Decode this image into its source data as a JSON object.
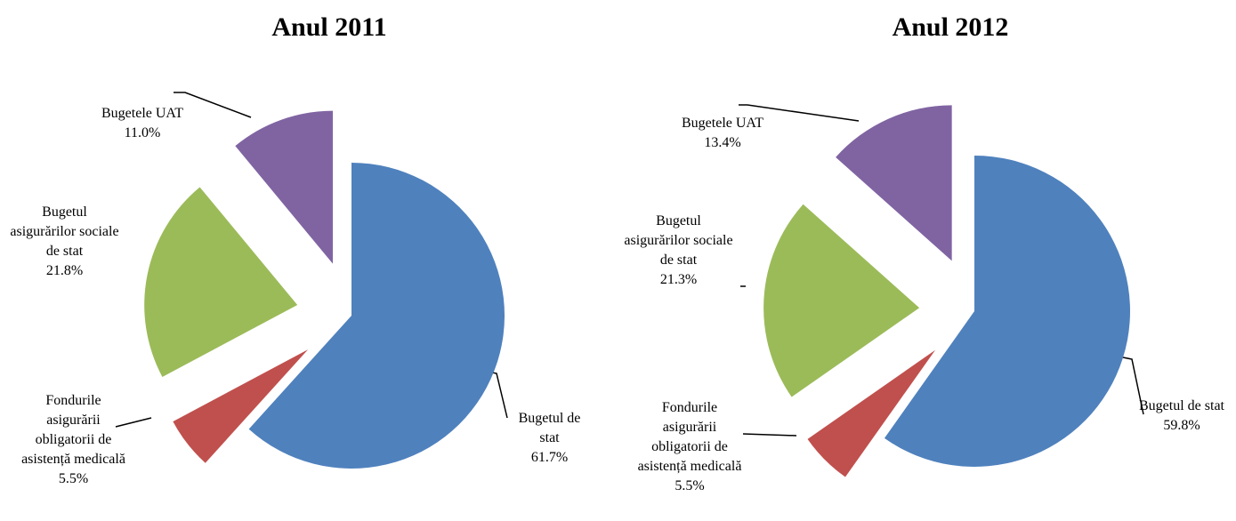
{
  "chart_data": [
    {
      "type": "pie",
      "title": "Anul 2011",
      "categories": [
        "Bugetul de stat",
        "Fondurile asigurării obligatorii de asistență medicală",
        "Bugetul asigurărilor sociale de stat",
        "Bugetele UAT"
      ],
      "values": [
        61.7,
        5.5,
        21.8,
        11.0
      ],
      "value_labels": [
        "61.7%",
        "5.5%",
        "21.8%",
        "11.0%"
      ],
      "colors": [
        "#4f81bd",
        "#c0504d",
        "#9bbb59",
        "#8064a2"
      ]
    },
    {
      "type": "pie",
      "title": "Anul 2012",
      "categories": [
        "Bugetul de stat",
        "Fondurile asigurării obligatorii de asistență medicală",
        "Bugetul asigurărilor sociale de stat",
        "Bugetele UAT"
      ],
      "values": [
        59.8,
        5.5,
        21.3,
        13.4
      ],
      "value_labels": [
        "59.8%",
        "5.5%",
        "21.3%",
        "13.4%"
      ],
      "colors": [
        "#4f81bd",
        "#c0504d",
        "#9bbb59",
        "#8064a2"
      ]
    }
  ]
}
